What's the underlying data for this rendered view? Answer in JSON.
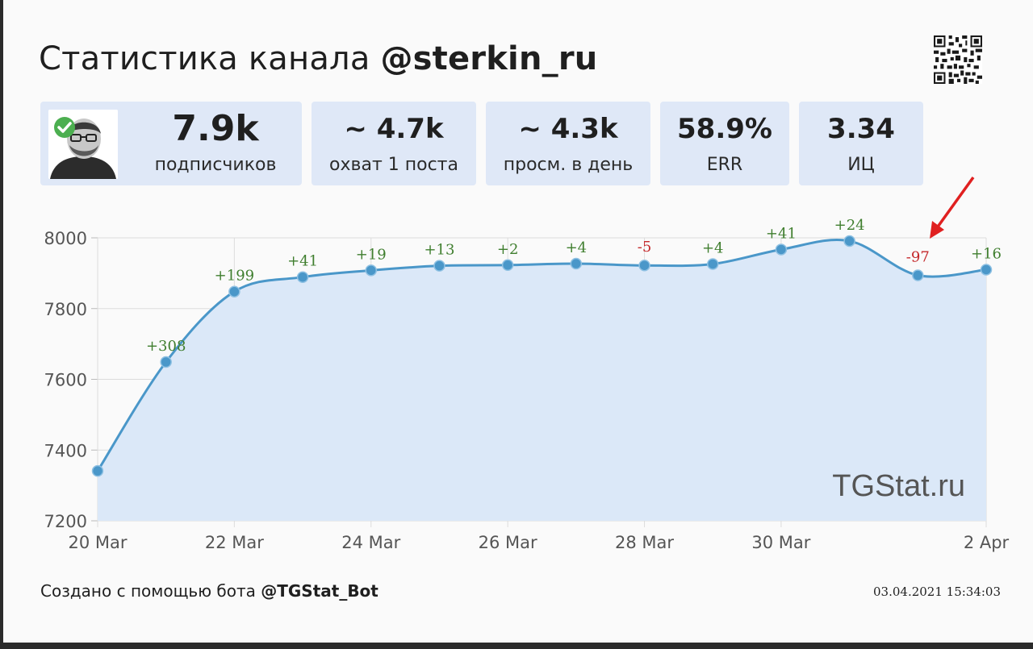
{
  "header": {
    "title_prefix": "Статистика канала",
    "channel": "@sterkin_ru"
  },
  "stats": [
    {
      "value": "7.9k",
      "label": "подписчиков"
    },
    {
      "value": "~ 4.7k",
      "label": "охват 1 поста"
    },
    {
      "value": "~ 4.3k",
      "label": "просм. в день"
    },
    {
      "value": "58.9%",
      "label": "ERR"
    },
    {
      "value": "3.34",
      "label": "ИЦ"
    }
  ],
  "footer": {
    "created_text": "Создано с помощью бота",
    "bot": "@TGStat_Bot",
    "timestamp": "03.04.2021 15:34:03"
  },
  "colors": {
    "line": "#4a97c9",
    "fill": "#dbe8f8",
    "positive": "#3f7e2e",
    "negative": "#c4282b",
    "arrow": "#e02020",
    "stat_box": "#dfe8f7"
  },
  "chart_data": {
    "type": "area",
    "title": "",
    "xlabel": "",
    "ylabel": "",
    "watermark": "TGStat.ru",
    "x": [
      "20 Mar",
      "21 Mar",
      "22 Mar",
      "23 Mar",
      "24 Mar",
      "25 Mar",
      "26 Mar",
      "27 Mar",
      "28 Mar",
      "29 Mar",
      "30 Mar",
      "31 Mar",
      "1 Apr",
      "2 Apr"
    ],
    "x_tick_labels": [
      "20 Mar",
      "22 Mar",
      "24 Mar",
      "26 Mar",
      "28 Mar",
      "30 Mar",
      "2 Apr"
    ],
    "x_tick_index": [
      0,
      2,
      4,
      6,
      8,
      10,
      13
    ],
    "values": [
      7341,
      7649,
      7848,
      7889,
      7908,
      7921,
      7923,
      7927,
      7922,
      7926,
      7967,
      7991,
      7894,
      7910
    ],
    "data_labels": [
      "",
      "+308",
      "+199",
      "+41",
      "+19",
      "+13",
      "+2",
      "+4",
      "-5",
      "+4",
      "+41",
      "+24",
      "-97",
      "+16"
    ],
    "ylim": [
      7200,
      8000
    ],
    "y_ticks": [
      7200,
      7400,
      7600,
      7800,
      8000
    ],
    "grid": true,
    "legend": "none"
  }
}
